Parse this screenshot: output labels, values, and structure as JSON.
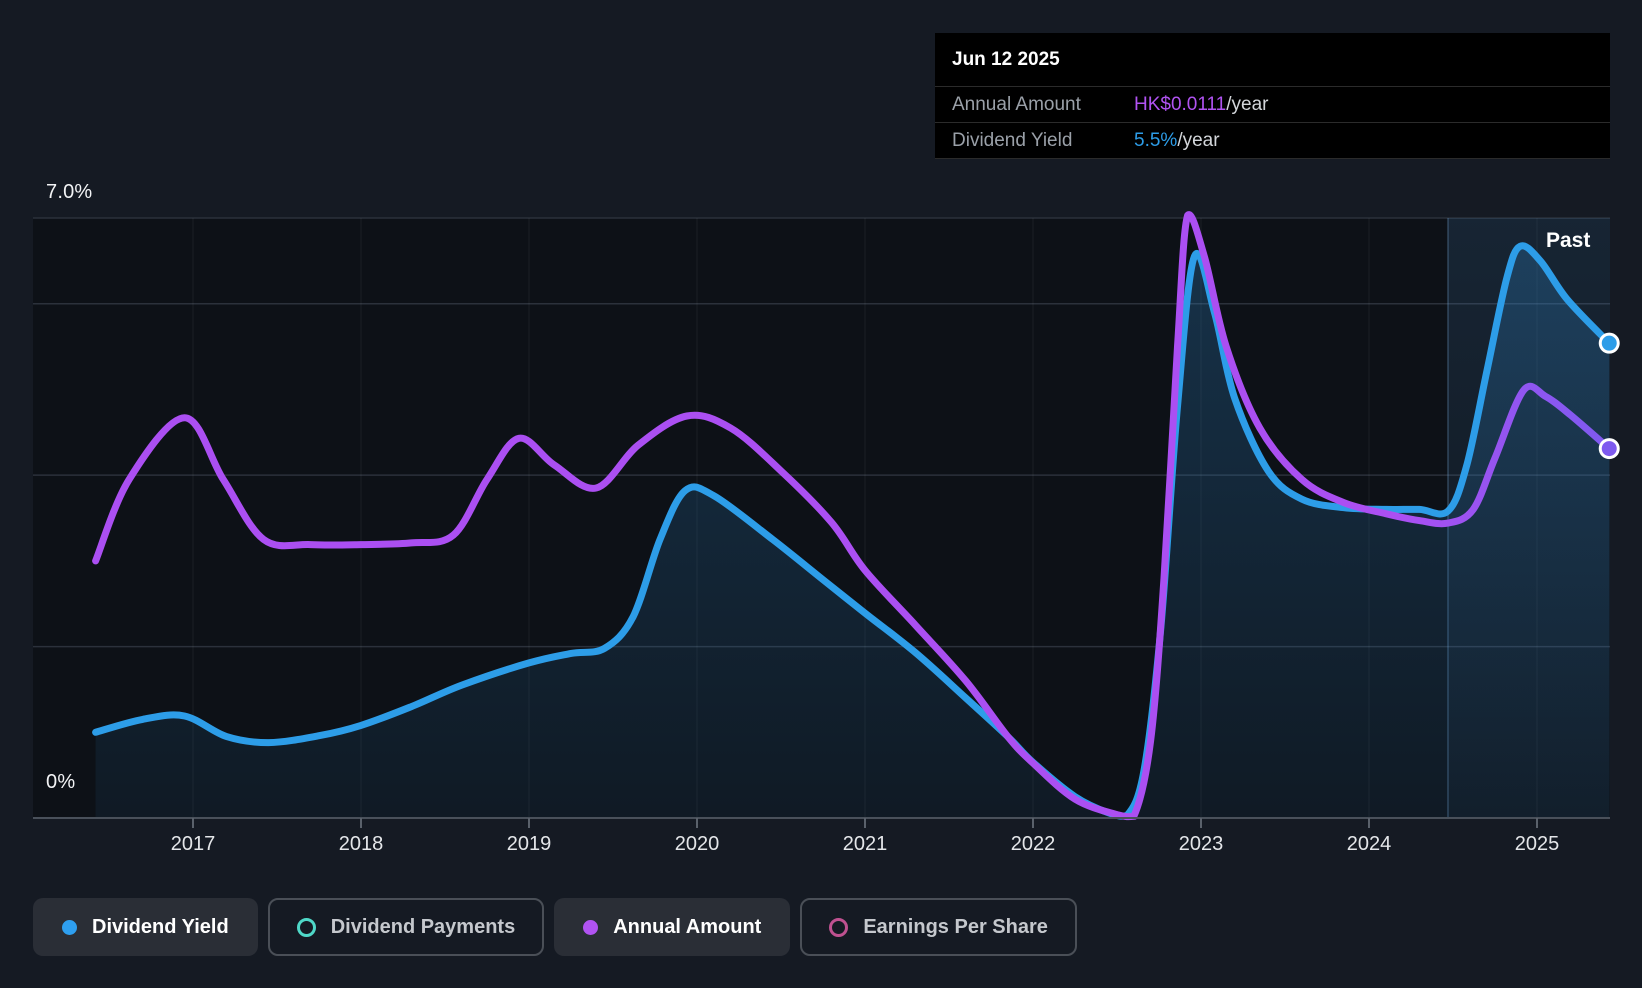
{
  "past_label": "Past",
  "tooltip": {
    "date": "Jun 12 2025",
    "rows": [
      {
        "label": "Annual Amount",
        "value": "HK$0.0111",
        "suffix": "/year",
        "color": "#b153f2"
      },
      {
        "label": "Dividend Yield",
        "value": "5.5%",
        "suffix": "/year",
        "color": "#2d9de8"
      }
    ]
  },
  "legend": [
    {
      "label": "Dividend Yield",
      "color": "#2e9ff0",
      "marker": "filled",
      "active": true
    },
    {
      "label": "Dividend Payments",
      "color": "#4fd8c8",
      "marker": "ring",
      "active": false
    },
    {
      "label": "Annual Amount",
      "color": "#b153f2",
      "marker": "filled",
      "active": true
    },
    {
      "label": "Earnings Per Share",
      "color": "#bf5190",
      "marker": "ring",
      "active": false
    }
  ],
  "colors": {
    "blue": "#2d9de8",
    "purple": "#ab4ff2",
    "purple_past": "#7e5aef",
    "blue_fill_top": "rgba(45,130,195,0.30)",
    "blue_fill_bottom": "rgba(45,130,195,0.08)",
    "past_fill_top": "rgba(80,150,215,0.15)",
    "past_fill_bottom": "rgba(80,150,215,0.04)",
    "plot_bg": "#0d1117",
    "gridline": "#2b313b",
    "axis_line": "#49505a",
    "tick": "#5a616b",
    "past_divider": "rgba(125,180,230,0.30)"
  },
  "chart_data": {
    "type": "area",
    "x_axis": {
      "ticks": [
        "2017",
        "2018",
        "2019",
        "2020",
        "2021",
        "2022",
        "2023",
        "2024",
        "2025"
      ],
      "range": [
        2016.42,
        2025.45
      ]
    },
    "y_axis": {
      "label_top": "7.0%",
      "label_bottom": "0%",
      "unit": "%",
      "range_percent": [
        0,
        7
      ],
      "gridlines_percent": [
        7,
        6,
        4,
        2
      ]
    },
    "past_divider_year": 2024.47,
    "legend_position": "bottom",
    "series": [
      {
        "name": "Dividend Yield",
        "style": "line+area",
        "unit": "% yield",
        "latest": "5.5%/year",
        "points": [
          [
            2016.42,
            1.0
          ],
          [
            2016.7,
            1.15
          ],
          [
            2016.95,
            1.19
          ],
          [
            2017.2,
            0.95
          ],
          [
            2017.45,
            0.88
          ],
          [
            2017.75,
            0.96
          ],
          [
            2018.0,
            1.08
          ],
          [
            2018.3,
            1.3
          ],
          [
            2018.6,
            1.55
          ],
          [
            2019.0,
            1.81
          ],
          [
            2019.25,
            1.92
          ],
          [
            2019.45,
            1.98
          ],
          [
            2019.62,
            2.35
          ],
          [
            2019.78,
            3.25
          ],
          [
            2019.93,
            3.82
          ],
          [
            2020.1,
            3.76
          ],
          [
            2020.45,
            3.25
          ],
          [
            2020.75,
            2.78
          ],
          [
            2021.0,
            2.39
          ],
          [
            2021.3,
            1.93
          ],
          [
            2021.6,
            1.4
          ],
          [
            2021.85,
            0.95
          ],
          [
            2022.0,
            0.65
          ],
          [
            2022.25,
            0.25
          ],
          [
            2022.45,
            0.06
          ],
          [
            2022.56,
            0.03
          ],
          [
            2022.66,
            0.55
          ],
          [
            2022.76,
            2.2
          ],
          [
            2022.86,
            4.8
          ],
          [
            2022.96,
            6.55
          ],
          [
            2023.08,
            5.9
          ],
          [
            2023.2,
            4.9
          ],
          [
            2023.4,
            4.05
          ],
          [
            2023.6,
            3.72
          ],
          [
            2023.85,
            3.62
          ],
          [
            2024.1,
            3.6
          ],
          [
            2024.3,
            3.6
          ],
          [
            2024.47,
            3.58
          ],
          [
            2024.58,
            4.1
          ],
          [
            2024.7,
            5.2
          ],
          [
            2024.82,
            6.3
          ],
          [
            2024.9,
            6.67
          ],
          [
            2025.02,
            6.5
          ],
          [
            2025.18,
            6.05
          ],
          [
            2025.43,
            5.54
          ]
        ]
      },
      {
        "name": "Annual Amount",
        "style": "line",
        "unit": "relative scale (HK$ axis not shown; latest = HK$0.0111/year)",
        "latest": "HK$0.0111/year",
        "points": [
          [
            2016.42,
            3.0
          ],
          [
            2016.62,
            3.95
          ],
          [
            2016.95,
            4.67
          ],
          [
            2017.18,
            3.95
          ],
          [
            2017.42,
            3.25
          ],
          [
            2017.7,
            3.19
          ],
          [
            2018.0,
            3.19
          ],
          [
            2018.3,
            3.21
          ],
          [
            2018.55,
            3.3
          ],
          [
            2018.75,
            3.95
          ],
          [
            2018.94,
            4.43
          ],
          [
            2019.15,
            4.12
          ],
          [
            2019.4,
            3.85
          ],
          [
            2019.65,
            4.35
          ],
          [
            2019.94,
            4.69
          ],
          [
            2020.2,
            4.55
          ],
          [
            2020.5,
            4.05
          ],
          [
            2020.8,
            3.45
          ],
          [
            2021.0,
            2.89
          ],
          [
            2021.3,
            2.25
          ],
          [
            2021.6,
            1.6
          ],
          [
            2021.85,
            0.95
          ],
          [
            2022.0,
            0.64
          ],
          [
            2022.25,
            0.22
          ],
          [
            2022.5,
            0.04
          ],
          [
            2022.6,
            0.02
          ],
          [
            2022.7,
            0.9
          ],
          [
            2022.78,
            2.8
          ],
          [
            2022.86,
            5.5
          ],
          [
            2022.92,
            7.03
          ],
          [
            2023.02,
            6.55
          ],
          [
            2023.15,
            5.5
          ],
          [
            2023.35,
            4.55
          ],
          [
            2023.6,
            3.95
          ],
          [
            2023.85,
            3.68
          ],
          [
            2024.1,
            3.55
          ],
          [
            2024.3,
            3.47
          ],
          [
            2024.47,
            3.44
          ],
          [
            2024.62,
            3.6
          ],
          [
            2024.75,
            4.2
          ],
          [
            2024.92,
            4.99
          ],
          [
            2025.05,
            4.92
          ],
          [
            2025.2,
            4.7
          ],
          [
            2025.43,
            4.31
          ]
        ]
      }
    ]
  }
}
